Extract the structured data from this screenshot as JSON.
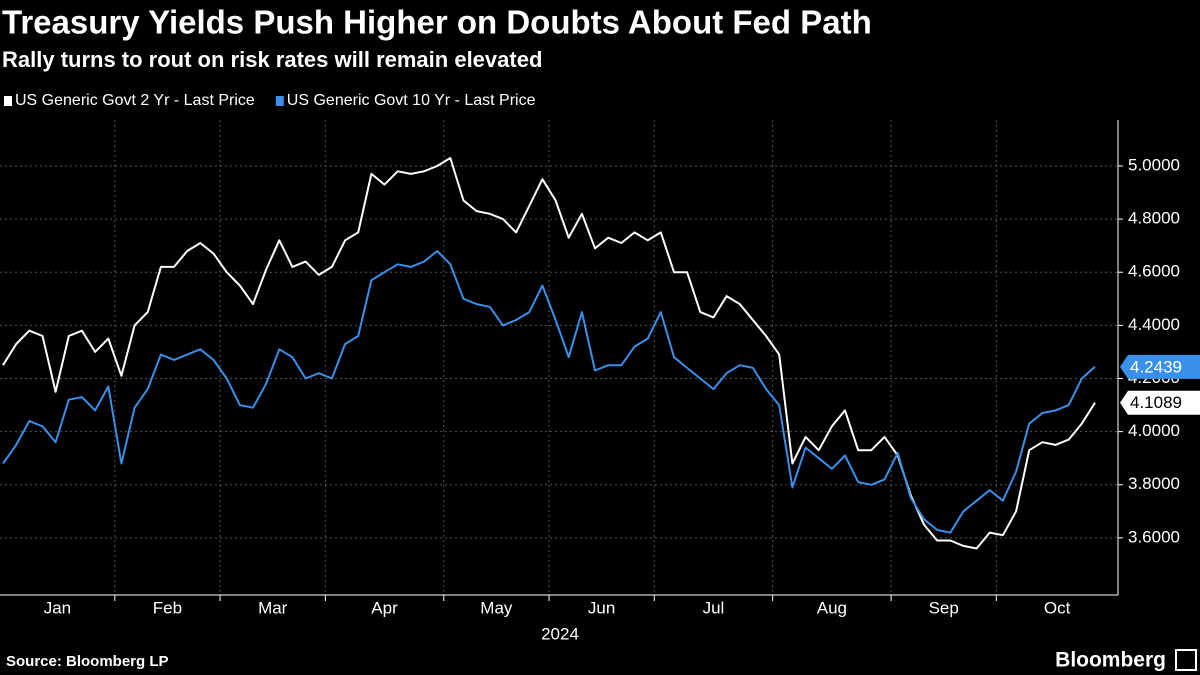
{
  "chart_data": {
    "type": "line",
    "title": "Treasury Yields Push Higher on Doubts About Fed Path",
    "subtitle": "Rally turns to rout on risk rates will remain elevated",
    "x_label": "2024",
    "source": "Source: Bloomberg LP",
    "brand": "Bloomberg",
    "categories": [
      "Jan",
      null,
      null,
      null,
      null,
      null,
      null,
      null,
      null,
      "Feb",
      null,
      null,
      null,
      null,
      null,
      null,
      null,
      "Mar",
      null,
      null,
      null,
      null,
      null,
      null,
      null,
      "Apr",
      null,
      null,
      null,
      null,
      null,
      null,
      null,
      null,
      "May",
      null,
      null,
      null,
      null,
      null,
      null,
      null,
      "Jun",
      null,
      null,
      null,
      null,
      null,
      null,
      null,
      "Jul",
      null,
      null,
      null,
      null,
      null,
      null,
      null,
      null,
      "Aug",
      null,
      null,
      null,
      null,
      null,
      null,
      null,
      null,
      "Sep",
      null,
      null,
      null,
      null,
      null,
      null,
      null,
      "Oct",
      null,
      null,
      null,
      null,
      null,
      null,
      null
    ],
    "series": [
      {
        "name": "US Generic Govt 2 Yr - Last Price",
        "color": "#ffffff",
        "values": [
          4.25,
          4.33,
          4.38,
          4.36,
          4.15,
          4.36,
          4.38,
          4.3,
          4.35,
          4.21,
          4.4,
          4.45,
          4.62,
          4.62,
          4.68,
          4.71,
          4.67,
          4.6,
          4.55,
          4.48,
          4.61,
          4.72,
          4.62,
          4.64,
          4.59,
          4.62,
          4.72,
          4.75,
          4.97,
          4.93,
          4.98,
          4.97,
          4.98,
          5.0,
          5.03,
          4.87,
          4.83,
          4.82,
          4.8,
          4.75,
          4.85,
          4.95,
          4.87,
          4.73,
          4.82,
          4.69,
          4.73,
          4.71,
          4.75,
          4.72,
          4.75,
          4.6,
          4.6,
          4.45,
          4.43,
          4.51,
          4.48,
          4.42,
          4.36,
          4.29,
          3.88,
          3.98,
          3.93,
          4.02,
          4.08,
          3.93,
          3.93,
          3.98,
          3.91,
          3.76,
          3.65,
          3.59,
          3.59,
          3.57,
          3.56,
          3.62,
          3.61,
          3.7,
          3.93,
          3.96,
          3.95,
          3.97,
          4.03,
          4.1089
        ]
      },
      {
        "name": "US Generic Govt 10 Yr - Last Price",
        "color": "#3a8fe8",
        "values": [
          3.88,
          3.95,
          4.04,
          4.02,
          3.96,
          4.12,
          4.13,
          4.08,
          4.17,
          3.88,
          4.09,
          4.16,
          4.29,
          4.27,
          4.29,
          4.31,
          4.27,
          4.2,
          4.1,
          4.09,
          4.18,
          4.31,
          4.28,
          4.2,
          4.22,
          4.2,
          4.33,
          4.36,
          4.57,
          4.6,
          4.63,
          4.62,
          4.64,
          4.68,
          4.63,
          4.5,
          4.48,
          4.47,
          4.4,
          4.42,
          4.45,
          4.55,
          4.42,
          4.28,
          4.45,
          4.23,
          4.25,
          4.25,
          4.32,
          4.35,
          4.45,
          4.28,
          4.24,
          4.2,
          4.16,
          4.22,
          4.25,
          4.24,
          4.16,
          4.1,
          3.79,
          3.94,
          3.9,
          3.86,
          3.91,
          3.81,
          3.8,
          3.82,
          3.92,
          3.75,
          3.67,
          3.63,
          3.62,
          3.7,
          3.74,
          3.78,
          3.74,
          3.85,
          4.03,
          4.07,
          4.08,
          4.1,
          4.2,
          4.2439
        ]
      }
    ],
    "ylim": [
      3.385,
      5.173
    ],
    "yticks": [
      {
        "value": 3.6,
        "label": "3.6000"
      },
      {
        "value": 3.8,
        "label": "3.8000"
      },
      {
        "value": 4.0,
        "label": "4.0000"
      },
      {
        "value": 4.2,
        "label": "4.2000"
      },
      {
        "value": 4.4,
        "label": "4.4000"
      },
      {
        "value": 4.6,
        "label": "4.6000"
      },
      {
        "value": 4.8,
        "label": "4.8000"
      },
      {
        "value": 5.0,
        "label": "5.0000"
      }
    ],
    "grid": true
  }
}
